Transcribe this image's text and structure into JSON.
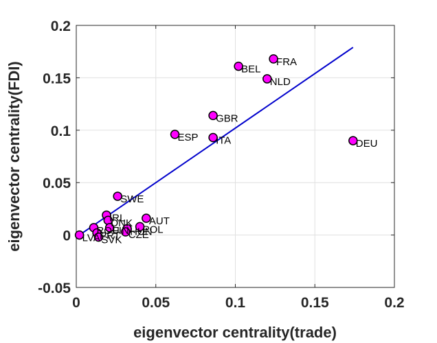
{
  "chart_data": {
    "type": "scatter",
    "title": "",
    "xlabel": "eigenvector centrality(trade)",
    "ylabel": "eigenvector centrality(FDI)",
    "xlim": [
      0,
      0.2
    ],
    "ylim": [
      -0.05,
      0.2
    ],
    "xticks": [
      0,
      0.05,
      0.1,
      0.15,
      0.2
    ],
    "xtick_labels": [
      "0",
      "0.05",
      "0.1",
      "0.15",
      "0.2"
    ],
    "yticks": [
      -0.05,
      0,
      0.05,
      0.1,
      0.15,
      0.2
    ],
    "ytick_labels": [
      "-0.05",
      "0",
      "0.05",
      "0.1",
      "0.15",
      "0.2"
    ],
    "grid": true,
    "colors": {
      "marker_fill": "#ff00ff",
      "marker_edge": "#000000",
      "line": "#0000cc",
      "grid": "#e0e0e0",
      "axis": "#262626"
    },
    "points": [
      {
        "label": "FRA",
        "x": 0.124,
        "y": 0.168
      },
      {
        "label": "BEL",
        "x": 0.102,
        "y": 0.161
      },
      {
        "label": "NLD",
        "x": 0.12,
        "y": 0.149
      },
      {
        "label": "GBR",
        "x": 0.086,
        "y": 0.114
      },
      {
        "label": "ESP",
        "x": 0.062,
        "y": 0.096
      },
      {
        "label": "ITA",
        "x": 0.086,
        "y": 0.093
      },
      {
        "label": "DEU",
        "x": 0.174,
        "y": 0.09
      },
      {
        "label": "SWE",
        "x": 0.026,
        "y": 0.037
      },
      {
        "label": "IRL",
        "x": 0.019,
        "y": 0.019
      },
      {
        "label": "DNK",
        "x": 0.02,
        "y": 0.014
      },
      {
        "label": "AUT",
        "x": 0.044,
        "y": 0.016
      },
      {
        "label": "FIN",
        "x": 0.021,
        "y": 0.007
      },
      {
        "label": "HUN",
        "x": 0.032,
        "y": 0.006
      },
      {
        "label": "POL",
        "x": 0.04,
        "y": 0.008
      },
      {
        "label": "ROU",
        "x": 0.011,
        "y": 0.007
      },
      {
        "label": "PRT",
        "x": 0.013,
        "y": 0.002
      },
      {
        "label": "CZE",
        "x": 0.031,
        "y": 0.003
      },
      {
        "label": "SVK",
        "x": 0.014,
        "y": -0.002
      },
      {
        "label": "LVA",
        "x": 0.002,
        "y": 0.0
      }
    ],
    "fit_line": {
      "x": [
        0.002,
        0.174
      ],
      "y": [
        0.0,
        0.179
      ]
    }
  }
}
